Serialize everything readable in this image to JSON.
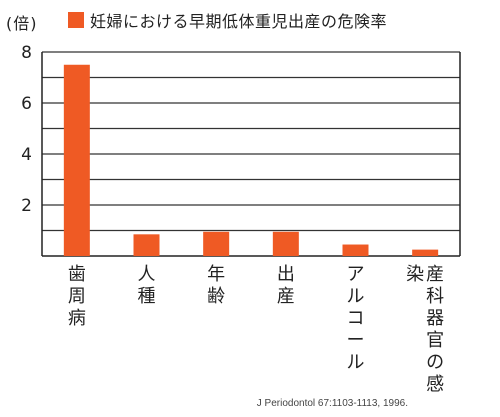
{
  "chart_data": {
    "type": "bar",
    "unit_label": "(倍)",
    "series": [
      {
        "name": "妊婦における早期低体重児出産の危険率",
        "color": "#ef5a24",
        "values": [
          7.5,
          0.85,
          0.95,
          0.95,
          0.45,
          0.25
        ]
      }
    ],
    "categories": [
      "歯周病",
      "人種",
      "年齢",
      "出産",
      "アルコール",
      "産科器官の感染"
    ],
    "ylim": [
      0,
      8
    ],
    "yticks": [
      "2",
      "4",
      "6",
      "8"
    ],
    "grid": "horizontal",
    "legend_position": "top",
    "source": "J Periodontol 67:1103-1113, 1996."
  }
}
